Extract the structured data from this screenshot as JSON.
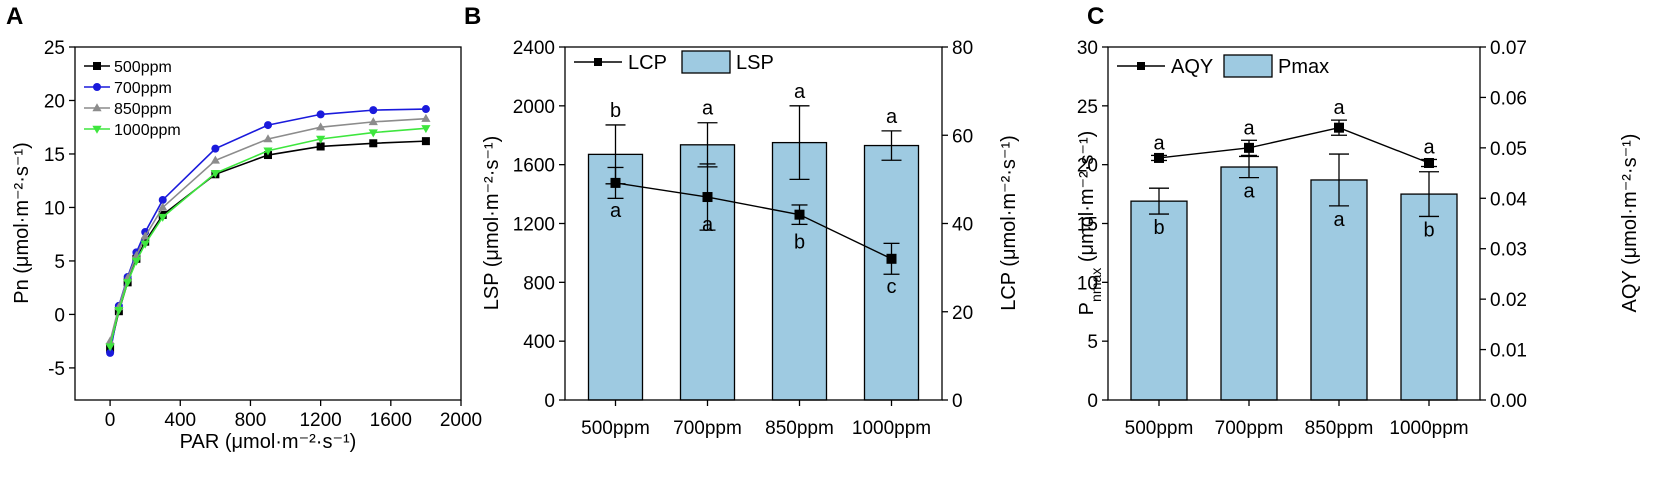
{
  "chart_data": [
    {
      "panel": "A",
      "type": "line",
      "xlabel": "PAR (μmol·m⁻²·s⁻¹)",
      "ylabel": "Pn (μmol·m⁻²·s⁻¹)",
      "xlim": [
        -200,
        2000
      ],
      "ylim": [
        -8,
        25
      ],
      "xticks": [
        0,
        400,
        800,
        1200,
        1600,
        2000
      ],
      "yticks": [
        -5,
        0,
        5,
        10,
        15,
        20,
        25
      ],
      "x": [
        0,
        50,
        100,
        150,
        200,
        300,
        600,
        900,
        1200,
        1500,
        1800
      ],
      "series": [
        {
          "name": "500ppm",
          "color": "#000000",
          "marker": "square",
          "values": [
            -3.2,
            0.3,
            3.0,
            5.2,
            6.8,
            9.3,
            13.1,
            14.9,
            15.7,
            16.0,
            16.2
          ]
        },
        {
          "name": "700ppm",
          "color": "#1a1adc",
          "marker": "circle",
          "values": [
            -3.6,
            0.8,
            3.5,
            5.8,
            7.7,
            10.7,
            15.5,
            17.7,
            18.7,
            19.1,
            19.2
          ]
        },
        {
          "name": "850ppm",
          "color": "#8c8c8c",
          "marker": "triangle-up",
          "values": [
            -2.5,
            0.7,
            3.4,
            5.5,
            7.3,
            10.0,
            14.4,
            16.4,
            17.5,
            18.0,
            18.3
          ]
        },
        {
          "name": "1000ppm",
          "color": "#3ee63e",
          "marker": "triangle-down",
          "values": [
            -3.0,
            0.4,
            3.0,
            5.0,
            6.6,
            9.1,
            13.2,
            15.3,
            16.4,
            17.0,
            17.4
          ]
        }
      ]
    },
    {
      "panel": "B",
      "type": "bar",
      "categories": [
        "500ppm",
        "700ppm",
        "850ppm",
        "1000ppm"
      ],
      "ylabel": "LSP  (μmol·m⁻²·s⁻¹)",
      "y2label": "LCP  (μmol·m⁻²·s⁻¹)",
      "ylim": [
        0,
        2400
      ],
      "yticks": [
        0,
        400,
        800,
        1200,
        1600,
        2000,
        2400
      ],
      "y2lim": [
        0,
        80
      ],
      "y2ticks": [
        0,
        20,
        40,
        60,
        80
      ],
      "bars": {
        "name": "LSP",
        "color": "#9ecae1",
        "values": [
          1670,
          1735,
          1750,
          1730
        ],
        "errors": [
          200,
          150,
          250,
          100
        ],
        "letters": [
          "b",
          "a",
          "a",
          "a"
        ]
      },
      "line": {
        "name": "LCP",
        "color": "#000000",
        "values": [
          49.2,
          46.0,
          42.0,
          32.0
        ],
        "errors": [
          3.5,
          7.5,
          2.2,
          3.5
        ],
        "letters": [
          "a",
          "a",
          "b",
          "c"
        ]
      }
    },
    {
      "panel": "C",
      "type": "bar",
      "categories": [
        "500ppm",
        "700ppm",
        "850ppm",
        "1000ppm"
      ],
      "ylabel": "P",
      "ylabel_sub": "nmax",
      "ylabel_rest": " (μmol·m⁻²·s⁻¹)",
      "y2label": "AQY  (μmol·m⁻²·s⁻¹)",
      "ylim": [
        0,
        30
      ],
      "yticks": [
        0,
        5,
        10,
        15,
        20,
        25,
        30
      ],
      "y2lim": [
        0,
        0.07
      ],
      "y2ticks": [
        "0.00",
        "0.01",
        "0.02",
        "0.03",
        "0.04",
        "0.05",
        "0.06",
        "0.07"
      ],
      "bars": {
        "name": "Pmax",
        "color": "#9ecae1",
        "values": [
          16.9,
          19.8,
          18.7,
          17.5
        ],
        "errors": [
          1.1,
          0.9,
          2.2,
          1.9
        ],
        "letters": [
          "b",
          "a",
          "a",
          "b"
        ]
      },
      "line": {
        "name": "AQY",
        "color": "#000000",
        "values": [
          0.048,
          0.05,
          0.054,
          0.047
        ],
        "errors": [
          0.0005,
          0.0015,
          0.0015,
          0.0007
        ],
        "letters": [
          "a",
          "a",
          "a",
          "a"
        ]
      }
    }
  ],
  "panel_letters": {
    "a": "A",
    "b": "B",
    "c": "C"
  }
}
